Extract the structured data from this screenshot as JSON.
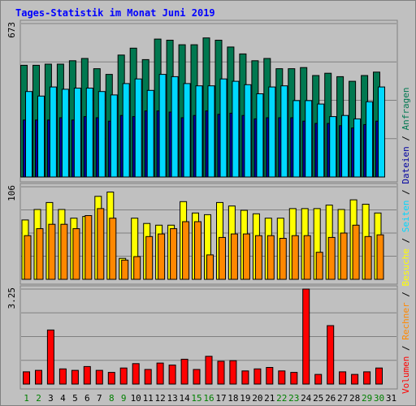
{
  "chart_data": {
    "type": "bar",
    "title": "Tages-Statistik im Monat Juni 2019",
    "days": [
      "1",
      "2",
      "3",
      "4",
      "5",
      "6",
      "7",
      "8",
      "9",
      "10",
      "11",
      "12",
      "13",
      "14",
      "15",
      "16",
      "17",
      "18",
      "19",
      "20",
      "21",
      "22",
      "23",
      "24",
      "25",
      "26",
      "27",
      "28",
      "29",
      "30",
      "31"
    ],
    "weekend_days": [
      "1",
      "2",
      "8",
      "9",
      "15",
      "16",
      "22",
      "23",
      "29",
      "30"
    ],
    "colors": {
      "background": "#c0c0c0",
      "title": "#0000ff",
      "weekday_label": "#000000",
      "weekend_label": "#008000",
      "anfragen": "#007850",
      "dateien": "#0000a0",
      "seiten": "#00d8ff",
      "besuche": "#ffff00",
      "rechner": "#ff8800",
      "volumen": "#ff0000"
    },
    "panels": [
      {
        "ymax_label": "673",
        "ylim": [
          0,
          673
        ],
        "series": [
          {
            "name": "Anfragen",
            "key": "anfragen",
            "values": [
              490,
              490,
              495,
              495,
              510,
              520,
              475,
              450,
              535,
              565,
              515,
              605,
              600,
              580,
              580,
              610,
              600,
              570,
              540,
              510,
              520,
              475,
              475,
              480,
              445,
              455,
              440,
              420,
              445,
              460
            ]
          },
          {
            "name": "Dateien",
            "key": "dateien",
            "values": [
              250,
              250,
              250,
              260,
              250,
              265,
              260,
              245,
              270,
              265,
              290,
              290,
              285,
              260,
              270,
              290,
              275,
              280,
              270,
              255,
              260,
              260,
              260,
              245,
              235,
              235,
              225,
              215,
              230,
              245
            ]
          },
          {
            "name": "Seiten",
            "key": "seiten",
            "values": [
              375,
              355,
              395,
              385,
              390,
              390,
              375,
              360,
              410,
              430,
              380,
              450,
              440,
              410,
              400,
              400,
              430,
              420,
              405,
              365,
              395,
              400,
              335,
              335,
              320,
              265,
              270,
              255,
              330,
              395
            ]
          }
        ]
      },
      {
        "ymax_label": "106",
        "ylim": [
          0,
          106
        ],
        "series": [
          {
            "name": "Besuche",
            "key": "besuche",
            "values": [
              68,
              80,
              88,
              80,
              70,
              72,
              95,
              100,
              24,
              70,
              64,
              62,
              62,
              89,
              76,
              74,
              88,
              84,
              79,
              75,
              70,
              70,
              81,
              81,
              81,
              85,
              80,
              91,
              86,
              76
            ]
          },
          {
            "name": "Rechner",
            "key": "rechner",
            "values": [
              50,
              58,
              63,
              63,
              58,
              73,
              81,
              70,
              22,
              26,
              49,
              52,
              58,
              66,
              66,
              28,
              48,
              52,
              52,
              50,
              50,
              47,
              50,
              50,
              31,
              48,
              53,
              62,
              49,
              51
            ]
          }
        ]
      },
      {
        "ymax_label": "3.25",
        "ylim": [
          0,
          3.25
        ],
        "series": [
          {
            "name": "Volumen",
            "key": "volumen",
            "values": [
              0.42,
              0.47,
              1.85,
              0.52,
              0.47,
              0.6,
              0.47,
              0.4,
              0.55,
              0.7,
              0.5,
              0.72,
              0.65,
              0.85,
              0.5,
              0.95,
              0.78,
              0.8,
              0.45,
              0.52,
              0.57,
              0.45,
              0.4,
              3.25,
              0.33,
              2.0,
              0.42,
              0.33,
              0.42,
              0.55
            ]
          }
        ]
      }
    ],
    "side_legend": [
      {
        "text": "Volumen",
        "key": "volumen"
      },
      {
        "text": " / ",
        "key": "weekday_label"
      },
      {
        "text": "Rechner",
        "key": "rechner"
      },
      {
        "text": " / ",
        "key": "weekday_label"
      },
      {
        "text": "Besuche",
        "key": "besuche"
      },
      {
        "text": " / ",
        "key": "weekday_label"
      },
      {
        "text": "Seiten",
        "key": "seiten"
      },
      {
        "text": " / ",
        "key": "weekday_label"
      },
      {
        "text": "Dateien",
        "key": "dateien"
      },
      {
        "text": " / ",
        "key": "weekday_label"
      },
      {
        "text": "Anfragen",
        "key": "anfragen"
      }
    ]
  }
}
